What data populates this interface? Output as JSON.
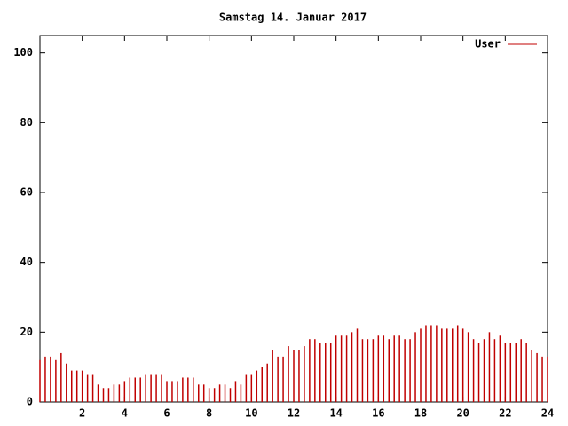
{
  "chart_data": {
    "type": "impulse",
    "title": "Samstag 14. Januar 2017",
    "x": [
      0,
      0.25,
      0.5,
      0.75,
      1,
      1.25,
      1.5,
      1.75,
      2,
      2.25,
      2.5,
      2.75,
      3,
      3.25,
      3.5,
      3.75,
      4,
      4.25,
      4.5,
      4.75,
      5,
      5.25,
      5.5,
      5.75,
      6,
      6.25,
      6.5,
      6.75,
      7,
      7.25,
      7.5,
      7.75,
      8,
      8.25,
      8.5,
      8.75,
      9,
      9.25,
      9.5,
      9.75,
      10,
      10.25,
      10.5,
      10.75,
      11,
      11.25,
      11.5,
      11.75,
      12,
      12.25,
      12.5,
      12.75,
      13,
      13.25,
      13.5,
      13.75,
      14,
      14.25,
      14.5,
      14.75,
      15,
      15.25,
      15.5,
      15.75,
      16,
      16.25,
      16.5,
      16.75,
      17,
      17.25,
      17.5,
      17.75,
      18,
      18.25,
      18.5,
      18.75,
      19,
      19.25,
      19.5,
      19.75,
      20,
      20.25,
      20.5,
      20.75,
      21,
      21.25,
      21.5,
      21.75,
      22,
      22.25,
      22.5,
      22.75,
      23,
      23.25,
      23.5,
      23.75,
      24
    ],
    "series": [
      {
        "name": "User",
        "color": "#c00000",
        "values": [
          12,
          13,
          13,
          12,
          14,
          11,
          9,
          9,
          9,
          8,
          8,
          5,
          4,
          4,
          5,
          5,
          6,
          7,
          7,
          7,
          8,
          8,
          8,
          8,
          6,
          6,
          6,
          7,
          7,
          7,
          5,
          5,
          4,
          4,
          5,
          5,
          4,
          6,
          5,
          8,
          8,
          9,
          10,
          11,
          15,
          13,
          13,
          16,
          15,
          15,
          16,
          18,
          18,
          17,
          17,
          17,
          19,
          19,
          19,
          20,
          21,
          18,
          18,
          18,
          19,
          19,
          18,
          19,
          19,
          18,
          18,
          20,
          21,
          22,
          22,
          22,
          21,
          21,
          21,
          22,
          21,
          20,
          18,
          17,
          18,
          20,
          18,
          19,
          17,
          17,
          17,
          18,
          17,
          15,
          14,
          13,
          13
        ]
      }
    ],
    "xlim": [
      0,
      24
    ],
    "xticks": [
      2,
      4,
      6,
      8,
      10,
      12,
      14,
      16,
      18,
      20,
      22,
      24
    ],
    "ylim": [
      0,
      105
    ],
    "yticks": [
      0,
      20,
      40,
      60,
      80,
      100
    ],
    "legend": "upper right"
  }
}
